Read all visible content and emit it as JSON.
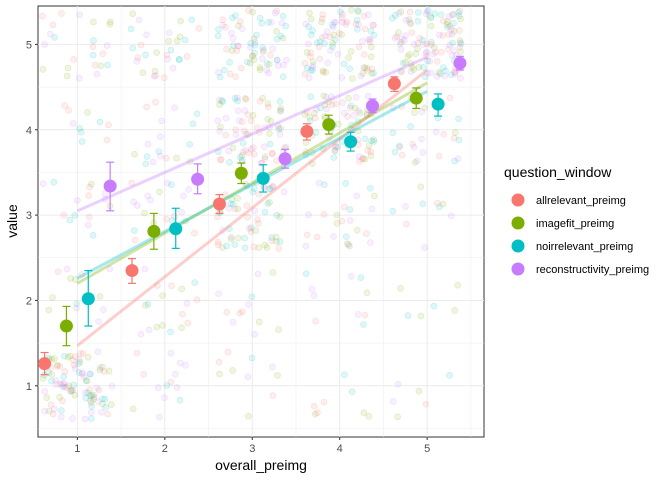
{
  "chart_data": {
    "type": "scatter",
    "title": "",
    "xlabel": "overall_preimg",
    "ylabel": "value",
    "xlim": [
      0.55,
      5.65
    ],
    "ylim": [
      0.4,
      5.45
    ],
    "x_ticks": [
      1,
      2,
      3,
      4,
      5
    ],
    "y_ticks": [
      1,
      2,
      3,
      4,
      5
    ],
    "grid": true,
    "legend_title": "question_window",
    "legend_position": "right",
    "background_points": "jittered raw responses, one translucent cloud per integer (overall_preimg, value) cell; dense cells at low/low and high/high",
    "series": [
      {
        "name": "allrelevant_preimg",
        "color": "#F8766D",
        "x": [
          1,
          2,
          3,
          4,
          5
        ],
        "y": [
          1.26,
          2.35,
          3.13,
          3.98,
          4.54
        ],
        "err_low": [
          1.13,
          2.2,
          3.02,
          3.88,
          4.45
        ],
        "err_high": [
          1.39,
          2.49,
          3.24,
          4.07,
          4.62
        ],
        "fit": [
          [
            1,
            1.47
          ],
          [
            5,
            4.7
          ]
        ]
      },
      {
        "name": "imagefit_preimg",
        "color": "#7CAE00",
        "x": [
          1,
          2,
          3,
          4,
          5
        ],
        "y": [
          1.7,
          2.81,
          3.49,
          4.06,
          4.37
        ],
        "err_low": [
          1.47,
          2.6,
          3.37,
          3.95,
          4.25
        ],
        "err_high": [
          1.93,
          3.02,
          3.61,
          4.17,
          4.49
        ],
        "fit": [
          [
            1,
            2.2
          ],
          [
            5,
            4.55
          ]
        ]
      },
      {
        "name": "noirrelevant_preimg",
        "color": "#00BFC4",
        "x": [
          1,
          2,
          3,
          4,
          5
        ],
        "y": [
          2.02,
          2.84,
          3.43,
          3.86,
          4.3
        ],
        "err_low": [
          1.7,
          2.61,
          3.27,
          3.75,
          4.16
        ],
        "err_high": [
          2.35,
          3.08,
          3.59,
          3.97,
          4.42
        ],
        "fit": [
          [
            1,
            2.26
          ],
          [
            5,
            4.45
          ]
        ]
      },
      {
        "name": "reconstructivity_preimg",
        "color": "#C77CFF",
        "x": [
          1,
          2,
          3,
          4,
          5
        ],
        "y": [
          3.34,
          3.42,
          3.66,
          4.28,
          4.78
        ],
        "err_low": [
          3.05,
          3.25,
          3.55,
          4.2,
          4.7
        ],
        "err_high": [
          3.62,
          3.6,
          3.77,
          4.36,
          4.86
        ],
        "fit": [
          [
            1,
            3.05
          ],
          [
            5,
            4.85
          ]
        ]
      }
    ]
  }
}
